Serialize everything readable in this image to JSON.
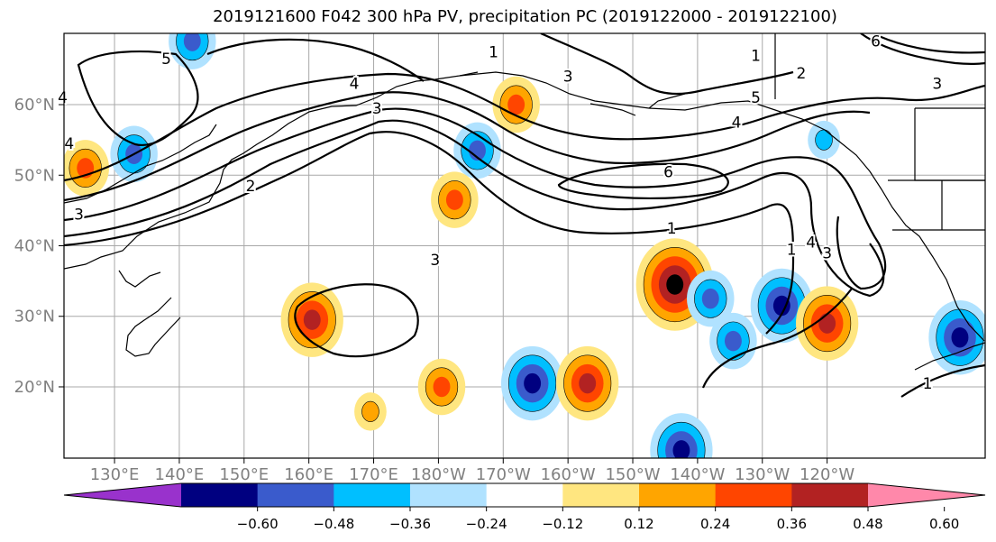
{
  "title": "2019121600 F042 300 hPa PV, precipitation PC (2019122000 - 2019122100)",
  "axes": {
    "lon_ticks": [
      "130°E",
      "140°E",
      "150°E",
      "160°E",
      "170°E",
      "180°W",
      "170°W",
      "160°W",
      "150°W",
      "140°W",
      "130°W",
      "120°W"
    ],
    "lat_ticks": [
      "60°N",
      "50°N",
      "40°N",
      "30°N",
      "20°N"
    ],
    "tick_color": "#808080"
  },
  "colorbar": {
    "ticks": [
      "−0.60",
      "−0.48",
      "−0.36",
      "−0.24",
      "−0.12",
      "0.12",
      "0.24",
      "0.36",
      "0.48",
      "0.60"
    ],
    "colors": [
      "#9932cc",
      "#000080",
      "#3a5bcc",
      "#00bfff",
      "#b0e2ff",
      "#ffffff",
      "#ffe680",
      "#ffa500",
      "#ff4500",
      "#b22222",
      "#ff88aa"
    ]
  },
  "contour_labels": [
    {
      "text": "5",
      "lon": 138,
      "lat": 66.5
    },
    {
      "text": "4",
      "lon": 122,
      "lat": 61
    },
    {
      "text": "4",
      "lon": 123,
      "lat": 54.5
    },
    {
      "text": "3",
      "lon": 124.5,
      "lat": 44.5
    },
    {
      "text": "2",
      "lon": 151,
      "lat": 48.5
    },
    {
      "text": "3",
      "lon": 179.5,
      "lat": 38
    },
    {
      "text": "4",
      "lon": 167,
      "lat": 63
    },
    {
      "text": "3",
      "lon": 170.5,
      "lat": 59.5
    },
    {
      "text": "1",
      "lon": 188.5,
      "lat": 67.5
    },
    {
      "text": "3",
      "lon": 200,
      "lat": 64
    },
    {
      "text": "6",
      "lon": 215.5,
      "lat": 50.5
    },
    {
      "text": "1",
      "lon": 216,
      "lat": 42.5
    },
    {
      "text": "4",
      "lon": 226,
      "lat": 57.5
    },
    {
      "text": "5",
      "lon": 229,
      "lat": 61
    },
    {
      "text": "2",
      "lon": 236,
      "lat": 64.5
    },
    {
      "text": "6",
      "lon": 247.5,
      "lat": 69
    },
    {
      "text": "3",
      "lon": 257,
      "lat": 63
    },
    {
      "text": "1",
      "lon": 229,
      "lat": 67
    },
    {
      "text": "4",
      "lon": 237.5,
      "lat": 40.5
    },
    {
      "text": "3",
      "lon": 240,
      "lat": 39
    },
    {
      "text": "1",
      "lon": 234.5,
      "lat": 39.5
    },
    {
      "text": "1",
      "lon": 255.5,
      "lat": 20.5
    }
  ],
  "precip_regions": [
    {
      "lon": 160.5,
      "lat": 29.5,
      "sign": 1,
      "level": 3
    },
    {
      "lon": 216.5,
      "lat": 34.5,
      "sign": 1,
      "level": 4
    },
    {
      "lon": 194.5,
      "lat": 20.5,
      "sign": -1,
      "level": 3
    },
    {
      "lon": 233,
      "lat": 31.5,
      "sign": -1,
      "level": 3
    },
    {
      "lon": 222,
      "lat": 32.5,
      "sign": -1,
      "level": 2
    },
    {
      "lon": 225.5,
      "lat": 26.5,
      "sign": -1,
      "level": 2
    },
    {
      "lon": 186,
      "lat": 53.5,
      "sign": -1,
      "level": 2
    },
    {
      "lon": 133,
      "lat": 53,
      "sign": -1,
      "level": 2
    },
    {
      "lon": 260.5,
      "lat": 27,
      "sign": -1,
      "level": 3
    },
    {
      "lon": 217.5,
      "lat": 11,
      "sign": -1,
      "level": 3
    },
    {
      "lon": 203,
      "lat": 20.5,
      "sign": 1,
      "level": 3
    },
    {
      "lon": 180.5,
      "lat": 20,
      "sign": 1,
      "level": 2
    },
    {
      "lon": 182.5,
      "lat": 46.5,
      "sign": 1,
      "level": 2
    },
    {
      "lon": 125.5,
      "lat": 51,
      "sign": 1,
      "level": 2
    },
    {
      "lon": 192,
      "lat": 60,
      "sign": 1,
      "level": 2
    },
    {
      "lon": 240,
      "lat": 29,
      "sign": 1,
      "level": 3
    },
    {
      "lon": 169.5,
      "lat": 16.5,
      "sign": 1,
      "level": 1
    },
    {
      "lon": 239.5,
      "lat": 55,
      "sign": -1,
      "level": 1
    },
    {
      "lon": 142,
      "lat": 69,
      "sign": -1,
      "level": 2
    }
  ]
}
